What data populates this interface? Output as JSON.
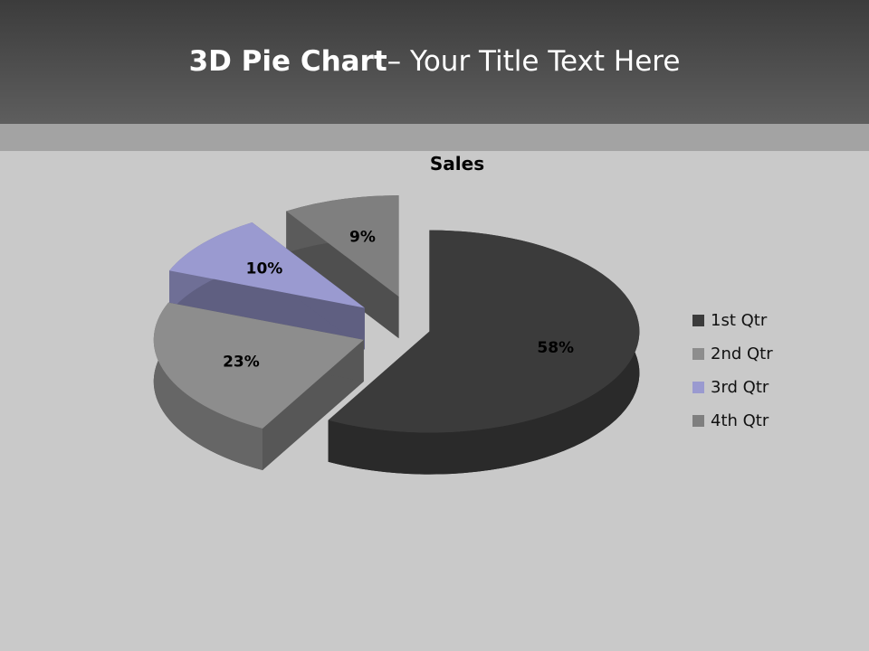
{
  "slide": {
    "title_bold": "3D Pie Chart",
    "title_rest": "– Your Title Text Here"
  },
  "chart_data": {
    "type": "pie",
    "style": "3d-exploded",
    "title": "Sales",
    "categories": [
      "1st Qtr",
      "2nd Qtr",
      "3rd Qtr",
      "4th Qtr"
    ],
    "values": [
      58,
      23,
      10,
      9
    ],
    "labels": [
      "58%",
      "23%",
      "10%",
      "9%"
    ],
    "colors": [
      "#3b3b3b",
      "#8d8d8d",
      "#9a9ad0",
      "#7f7f7f"
    ],
    "legend": "right"
  }
}
